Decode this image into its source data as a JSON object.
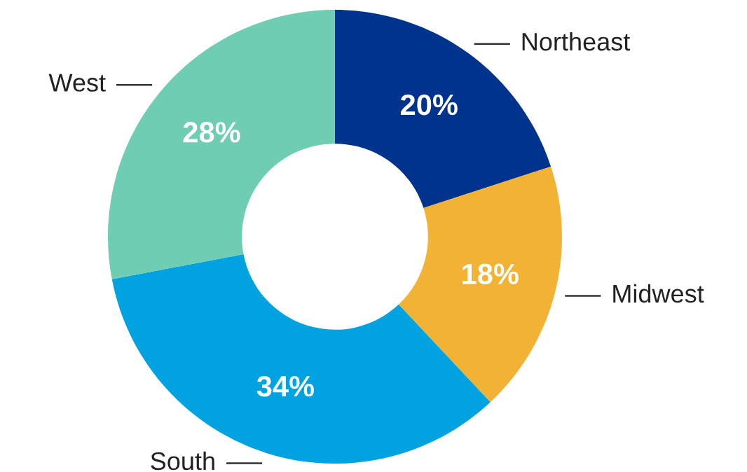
{
  "chart_data": {
    "type": "donut",
    "categories": [
      "Northeast",
      "Midwest",
      "South",
      "West"
    ],
    "values": [
      20,
      18,
      34,
      28
    ],
    "colors": [
      "#00338d",
      "#f2b233",
      "#00a3e0",
      "#6fcdb4"
    ],
    "value_labels": [
      "20%",
      "18%",
      "34%",
      "28%"
    ],
    "legend": false
  }
}
